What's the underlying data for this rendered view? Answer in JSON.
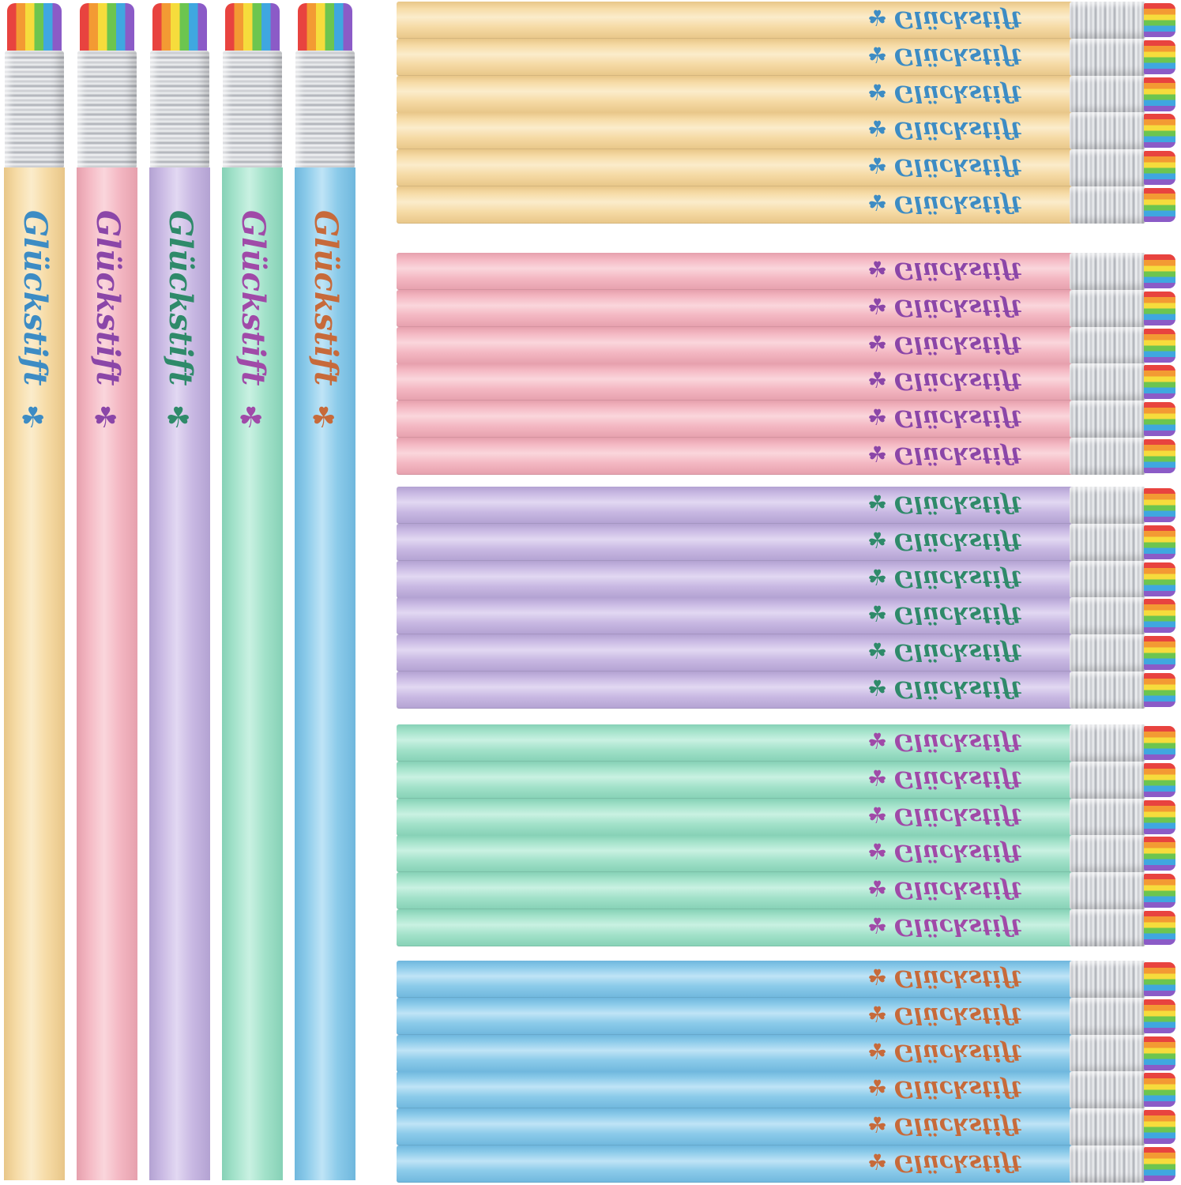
{
  "brand_text": "Glückstift",
  "clover_icon": "four-leaf-clover-icon",
  "colors": [
    {
      "name": "yellow",
      "barrel": "#f6dba6",
      "barrel_hi": "#fbeccb",
      "barrel_lo": "#e8c688",
      "ink": "#3d8cc4"
    },
    {
      "name": "pink",
      "barrel": "#f4b8c3",
      "barrel_hi": "#fad6dc",
      "barrel_lo": "#e6a0ad",
      "ink": "#8b46a8"
    },
    {
      "name": "lilac",
      "barrel": "#c9b9e3",
      "barrel_hi": "#e2d8f2",
      "barrel_lo": "#b3a2d2",
      "ink": "#2f8a6a"
    },
    {
      "name": "mint",
      "barrel": "#a3e2ca",
      "barrel_hi": "#c9f1e2",
      "barrel_lo": "#86d1b6",
      "ink": "#a04aa8"
    },
    {
      "name": "blue",
      "barrel": "#8ccbea",
      "barrel_hi": "#bfe4f6",
      "barrel_lo": "#6fb7dd",
      "ink": "#c76a3a"
    }
  ],
  "eraser_stripes": [
    "#e8433f",
    "#f39a33",
    "#f6dc3c",
    "#6cc54f",
    "#3fa7e0",
    "#8b5bc7"
  ],
  "ferrule_color": "#d9dbdf",
  "vertical_pencils": [
    {
      "color": "yellow",
      "label": "Glückstift"
    },
    {
      "color": "pink",
      "label": "Glückstift"
    },
    {
      "color": "lilac",
      "label": "Glückstift"
    },
    {
      "color": "mint",
      "label": "Glückstift"
    },
    {
      "color": "blue",
      "label": "Glückstift"
    }
  ],
  "horizontal_groups": [
    {
      "color": "yellow",
      "count": 6,
      "label": "Glückstift"
    },
    {
      "color": "pink",
      "count": 6,
      "label": "Glückstift"
    },
    {
      "color": "lilac",
      "count": 6,
      "label": "Glückstift"
    },
    {
      "color": "mint",
      "count": 6,
      "label": "Glückstift"
    },
    {
      "color": "blue",
      "count": 6,
      "label": "Glückstift"
    }
  ]
}
